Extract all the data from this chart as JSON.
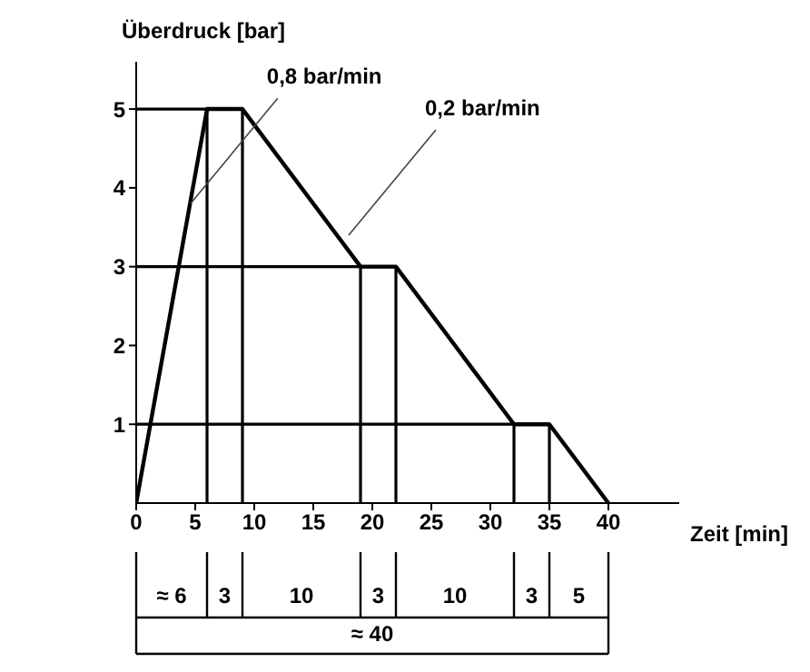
{
  "chart_data": {
    "type": "line",
    "xlabel": "Zeit [min]",
    "ylabel": "Überdruck [bar]",
    "xlim": [
      0,
      46
    ],
    "ylim": [
      0,
      5.6
    ],
    "xticks": [
      0,
      5,
      10,
      15,
      20,
      25,
      30,
      35,
      40
    ],
    "yticks": [
      1,
      2,
      3,
      4,
      5
    ],
    "grid": false,
    "marker": "none",
    "line_style": "solid",
    "series": [
      {
        "color": "#000000",
        "x": [
          0,
          6,
          9,
          19,
          22,
          32,
          35,
          40
        ],
        "values": [
          0,
          5,
          5,
          3,
          3,
          1,
          1,
          0
        ]
      },
      {
        "color": "#000000",
        "x": [
          0,
          9,
          9
        ],
        "values": [
          5,
          5,
          0
        ]
      },
      {
        "color": "#000000",
        "x": [
          6,
          6
        ],
        "values": [
          5,
          0
        ]
      },
      {
        "color": "#000000",
        "x": [
          0,
          22,
          22
        ],
        "values": [
          3,
          3,
          0
        ]
      },
      {
        "color": "#000000",
        "x": [
          19,
          19
        ],
        "values": [
          3,
          0
        ]
      },
      {
        "color": "#000000",
        "x": [
          0,
          35,
          35
        ],
        "values": [
          1,
          1,
          0
        ]
      },
      {
        "color": "#000000",
        "x": [
          32,
          32
        ],
        "values": [
          1,
          0
        ]
      }
    ],
    "annotations": [
      {
        "text": "0,8 bar/min",
        "x": 4.6,
        "y": 3.8
      },
      {
        "text": "0,2 bar/min",
        "x": 18,
        "y": 3.4
      },
      "≈ 6",
      "3",
      "10",
      "3",
      "10",
      "3",
      "5",
      "≈ 40"
    ]
  }
}
